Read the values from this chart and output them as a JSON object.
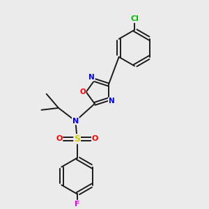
{
  "bg_color": "#ebebeb",
  "bond_color": "#1a1a1a",
  "atom_colors": {
    "Cl": "#00bb00",
    "N": "#0000ff",
    "O": "#ff0000",
    "S": "#cccc00",
    "F": "#ee00ee"
  }
}
